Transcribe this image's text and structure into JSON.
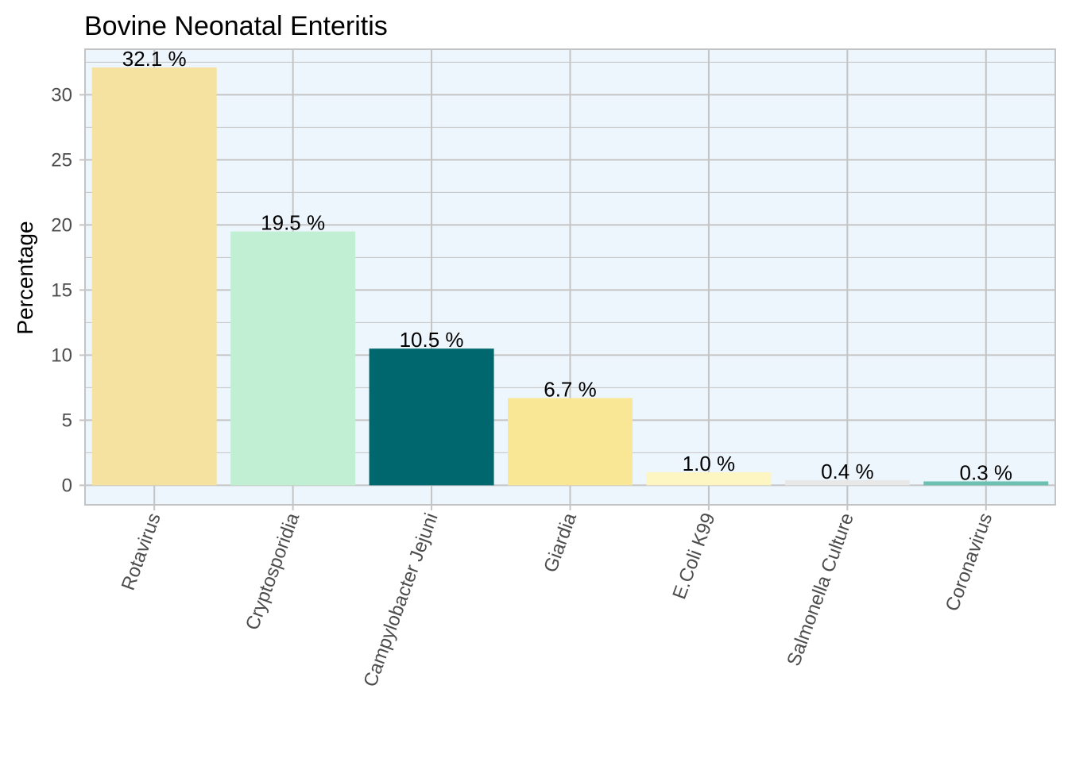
{
  "chart_data": {
    "type": "bar",
    "title": "Bovine Neonatal Enteritis",
    "xlabel": "",
    "ylabel": "Percentage",
    "ylim": [
      -1.5,
      33.5
    ],
    "yticks": [
      0,
      5,
      10,
      15,
      20,
      25,
      30
    ],
    "grid": true,
    "legend": "none",
    "categories": [
      "Rotavirus",
      "Cryptosporidia",
      "Campylobacter Jejuni",
      "Giardia",
      "E.Coli K99",
      "Salmonella Culture",
      "Coronavirus"
    ],
    "values": [
      32.1,
      19.5,
      10.5,
      6.7,
      1.0,
      0.4,
      0.3
    ],
    "labels": [
      "32.1 %",
      "19.5 %",
      "10.5 %",
      "6.7 %",
      "1.0 %",
      "0.4 %",
      "0.3 %"
    ],
    "bar_colors": [
      "#f5e1a0",
      "#c0efd3",
      "#00676e",
      "#fae795",
      "#fdf6c3",
      "#e8e8e8",
      "#6cbfb1"
    ],
    "panel_background": "#eef6fd",
    "grid_color": "#c4c4c4"
  }
}
